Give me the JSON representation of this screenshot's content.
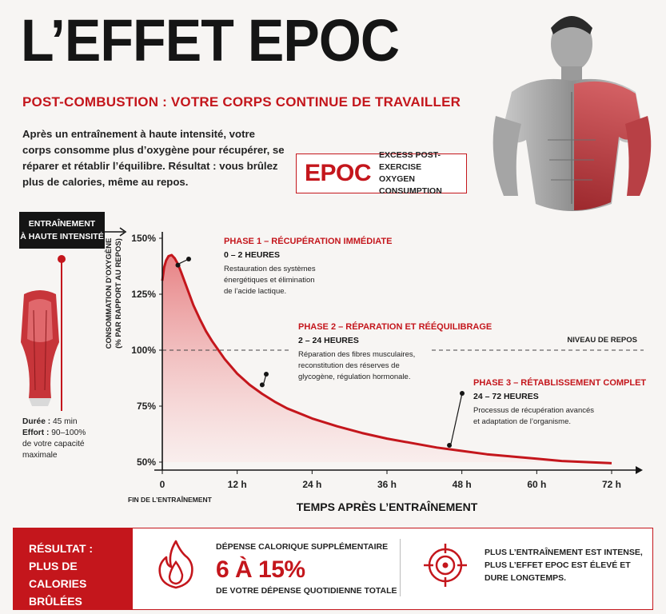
{
  "header": {
    "title": "L’EFFET EPOC",
    "subtitle": "POST-COMBUSTION : VOTRE CORPS CONTINUE DE TRAVAILLER",
    "intro": "Après un entraînement à haute intensité, votre corps consomme plus d’oxygène pour récupérer, se réparer et rétablir l’équilibre. Résultat : vous brûlez plus de calories, même au repos."
  },
  "epoc": {
    "word": "EPOC",
    "def_line1": "EXCESS POST-EXERCISE",
    "def_line2": "OXYGEN CONSUMPTION"
  },
  "training": {
    "line1": "ENTRAÎNEMENT",
    "line2": "À HAUTE INTENSITÉ",
    "duration_label": "Durée :",
    "duration_value": "45 min",
    "effort_label": "Effort :",
    "effort_value": "90–100%",
    "effort_note_1": "de votre capacité",
    "effort_note_2": "maximale"
  },
  "colors": {
    "accent": "#c4161c",
    "dark": "#151515",
    "background": "#f7f5f3",
    "fill_top": "#e46d70",
    "fill_bottom": "#fbe7e7"
  },
  "icons": {
    "fire": "fire-icon",
    "target": "target-icon",
    "arrow": "arrow-right-icon"
  },
  "chart_data": {
    "type": "area",
    "title": "",
    "xlabel": "TEMPS APRÈS L’ENTRAÎNEMENT",
    "ylabel_line1": "CONSOMMATION D’OXYGÈNE",
    "ylabel_line2": "(% PAR RAPPORT AU REPOS)",
    "x_ticks": [
      "0",
      "12 h",
      "24 h",
      "36 h",
      "48 h",
      "60 h",
      "72 h"
    ],
    "x_tick_values": [
      0,
      12,
      24,
      36,
      48,
      60,
      72
    ],
    "y_ticks": [
      "150%",
      "125%",
      "100%",
      "75%",
      "50%"
    ],
    "y_tick_values": [
      150,
      125,
      100,
      75,
      50
    ],
    "xlim": [
      0,
      75
    ],
    "ylim": [
      50,
      150
    ],
    "x_origin_note": "FIN DE L’ENTRAÎNEMENT",
    "grid": false,
    "series": [
      {
        "x": [
          0,
          0.3,
          0.6,
          1,
          1.5,
          2,
          2.5,
          3,
          4,
          5,
          6,
          7,
          8,
          10,
          12,
          14,
          16,
          18,
          20,
          24,
          28,
          32,
          36,
          40,
          44,
          48,
          52,
          56,
          60,
          64,
          68,
          72
        ],
        "y": [
          131,
          137,
          140,
          142,
          142.5,
          141,
          138.5,
          135,
          127.5,
          120,
          114,
          108.5,
          104,
          96,
          89.5,
          84.5,
          80.5,
          77,
          74,
          69.5,
          66,
          63,
          60.5,
          58.5,
          56.5,
          55,
          53.5,
          52.5,
          51.5,
          50.5,
          50,
          49.5
        ]
      }
    ],
    "reference_line": {
      "y": 100,
      "label": "NIVEAU DE REPOS"
    },
    "annotations": [
      {
        "point": {
          "x": 2.5,
          "y": 138
        },
        "title": "PHASE 1 – RÉCUPÉRATION IMMÉDIATE",
        "time": "0 – 2 HEURES",
        "lines": [
          "Restauration des systèmes",
          "énergétiques et élimination",
          "de l’acide lactique."
        ]
      },
      {
        "point": {
          "x": 16,
          "y": 84.5
        },
        "title": "PHASE 2 – RÉPARATION ET RÉÉQUILIBRAGE",
        "time": "2 – 24 HEURES",
        "lines": [
          "Réparation des fibres musculaires,",
          "reconstitution des réserves de",
          "glycogène, régulation hormonale."
        ]
      },
      {
        "point": {
          "x": 46,
          "y": 57.5
        },
        "title": "PHASE 3 – RÉTABLISSEMENT COMPLET",
        "time": "24 – 72 HEURES",
        "lines": [
          "Processus de récupération avancés",
          "et adaptation de l’organisme."
        ]
      }
    ]
  },
  "result": {
    "line1": "RÉSULTAT :",
    "line2": "PLUS DE CALORIES",
    "line3": "BRÛLÉES",
    "kcal_label": "DÉPENSE CALORIQUE SUPPLÉMENTAIRE",
    "kcal_value": "6 À 15%",
    "kcal_sub": "DE VOTRE DÉPENSE QUOTIDIENNE TOTALE",
    "intense_1": "PLUS L’ENTRAÎNEMENT EST INTENSE,",
    "intense_2": "PLUS L’EFFET EPOC EST ÉLEVÉ ET",
    "intense_3": "DURE LONGTEMPS."
  }
}
